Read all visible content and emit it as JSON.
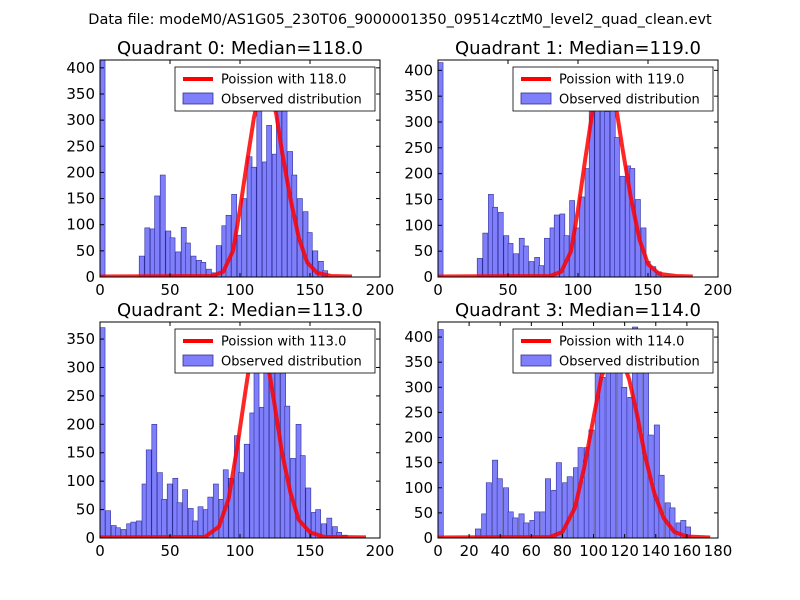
{
  "suptitle": "Data file: modeM0/AS1G05_230T06_9000001350_09514cztM0_level2_quad_clean.evt",
  "legend_observed": "Observed distribution",
  "colors": {
    "bars": "#7f7ffb",
    "bar_edge": "#2f2f9a",
    "poisson": "#ff0000",
    "axes": "#000000"
  },
  "chart_data": [
    {
      "type": "bar+line",
      "title": "Quadrant 0: Median=118.0",
      "median": 118.0,
      "legend_poisson": "Poission with 118.0",
      "xlim": [
        0,
        200
      ],
      "ylim": [
        0,
        415
      ],
      "xticks": [
        0,
        50,
        100,
        150,
        200
      ],
      "yticks": [
        0,
        50,
        100,
        150,
        200,
        250,
        300,
        350,
        400
      ],
      "bar_width": 3.6,
      "bars": [
        [
          0,
          415
        ],
        [
          28,
          40
        ],
        [
          32,
          94
        ],
        [
          36,
          92
        ],
        [
          39,
          155
        ],
        [
          43,
          195
        ],
        [
          47,
          88
        ],
        [
          50,
          75
        ],
        [
          54,
          48
        ],
        [
          58,
          95
        ],
        [
          61,
          65
        ],
        [
          65,
          40
        ],
        [
          69,
          32
        ],
        [
          72,
          28
        ],
        [
          76,
          15
        ],
        [
          80,
          8
        ],
        [
          83,
          60
        ],
        [
          87,
          98
        ],
        [
          90,
          118
        ],
        [
          94,
          158
        ],
        [
          98,
          80
        ],
        [
          101,
          150
        ],
        [
          105,
          230
        ],
        [
          108,
          210
        ],
        [
          112,
          320
        ],
        [
          116,
          220
        ],
        [
          119,
          290
        ],
        [
          123,
          235
        ],
        [
          126,
          385
        ],
        [
          130,
          340
        ],
        [
          134,
          240
        ],
        [
          137,
          195
        ],
        [
          141,
          150
        ],
        [
          145,
          125
        ],
        [
          148,
          85
        ],
        [
          152,
          50
        ],
        [
          156,
          30
        ],
        [
          159,
          12
        ]
      ],
      "poisson": [
        [
          0,
          1
        ],
        [
          80,
          2
        ],
        [
          88,
          10
        ],
        [
          95,
          50
        ],
        [
          100,
          130
        ],
        [
          105,
          220
        ],
        [
          110,
          305
        ],
        [
          114,
          355
        ],
        [
          118,
          368
        ],
        [
          122,
          355
        ],
        [
          126,
          310
        ],
        [
          130,
          240
        ],
        [
          136,
          150
        ],
        [
          142,
          75
        ],
        [
          148,
          28
        ],
        [
          155,
          8
        ],
        [
          165,
          2
        ],
        [
          180,
          1
        ]
      ]
    },
    {
      "type": "bar+line",
      "title": "Quadrant 1: Median=119.0",
      "median": 119.0,
      "legend_poisson": "Poission with 119.0",
      "xlim": [
        0,
        200
      ],
      "ylim": [
        0,
        420
      ],
      "xticks": [
        0,
        50,
        100,
        150,
        200
      ],
      "yticks": [
        0,
        50,
        100,
        150,
        200,
        250,
        300,
        350,
        400
      ],
      "bar_width": 3.6,
      "bars": [
        [
          0,
          415
        ],
        [
          28,
          36
        ],
        [
          32,
          85
        ],
        [
          36,
          160
        ],
        [
          39,
          135
        ],
        [
          43,
          125
        ],
        [
          47,
          80
        ],
        [
          50,
          65
        ],
        [
          54,
          45
        ],
        [
          58,
          75
        ],
        [
          61,
          60
        ],
        [
          65,
          30
        ],
        [
          69,
          38
        ],
        [
          72,
          22
        ],
        [
          76,
          75
        ],
        [
          80,
          95
        ],
        [
          83,
          120
        ],
        [
          87,
          122
        ],
        [
          90,
          80
        ],
        [
          94,
          148
        ],
        [
          98,
          95
        ],
        [
          101,
          155
        ],
        [
          105,
          210
        ],
        [
          108,
          340
        ],
        [
          112,
          390
        ],
        [
          116,
          400
        ],
        [
          119,
          320
        ],
        [
          123,
          390
        ],
        [
          126,
          270
        ],
        [
          130,
          195
        ],
        [
          134,
          215
        ],
        [
          137,
          210
        ],
        [
          141,
          150
        ],
        [
          145,
          95
        ],
        [
          148,
          30
        ],
        [
          152,
          20
        ],
        [
          156,
          10
        ]
      ],
      "poisson": [
        [
          0,
          1
        ],
        [
          80,
          2
        ],
        [
          88,
          10
        ],
        [
          95,
          50
        ],
        [
          100,
          130
        ],
        [
          105,
          225
        ],
        [
          110,
          315
        ],
        [
          114,
          370
        ],
        [
          119,
          390
        ],
        [
          124,
          370
        ],
        [
          128,
          315
        ],
        [
          132,
          245
        ],
        [
          138,
          150
        ],
        [
          144,
          72
        ],
        [
          150,
          25
        ],
        [
          158,
          6
        ],
        [
          170,
          2
        ],
        [
          182,
          1
        ]
      ]
    },
    {
      "type": "bar+line",
      "title": "Quadrant 2: Median=113.0",
      "median": 113.0,
      "legend_poisson": "Poission with 113.0",
      "xlim": [
        0,
        200
      ],
      "ylim": [
        0,
        380
      ],
      "xticks": [
        0,
        50,
        100,
        150,
        200
      ],
      "yticks": [
        0,
        50,
        100,
        150,
        200,
        250,
        300,
        350
      ],
      "bar_width": 3.6,
      "bars": [
        [
          0,
          370
        ],
        [
          4,
          48
        ],
        [
          8,
          22
        ],
        [
          11,
          18
        ],
        [
          15,
          15
        ],
        [
          19,
          25
        ],
        [
          22,
          28
        ],
        [
          26,
          30
        ],
        [
          30,
          95
        ],
        [
          33,
          155
        ],
        [
          37,
          200
        ],
        [
          41,
          115
        ],
        [
          44,
          68
        ],
        [
          48,
          95
        ],
        [
          52,
          105
        ],
        [
          55,
          62
        ],
        [
          59,
          85
        ],
        [
          63,
          52
        ],
        [
          66,
          30
        ],
        [
          70,
          55
        ],
        [
          74,
          50
        ],
        [
          77,
          72
        ],
        [
          81,
          95
        ],
        [
          85,
          68
        ],
        [
          88,
          120
        ],
        [
          92,
          105
        ],
        [
          96,
          180
        ],
        [
          99,
          115
        ],
        [
          103,
          165
        ],
        [
          107,
          220
        ],
        [
          110,
          340
        ],
        [
          114,
          230
        ],
        [
          117,
          310
        ],
        [
          121,
          290
        ],
        [
          125,
          355
        ],
        [
          129,
          355
        ],
        [
          132,
          232
        ],
        [
          136,
          140
        ],
        [
          140,
          200
        ],
        [
          143,
          145
        ],
        [
          147,
          88
        ],
        [
          151,
          45
        ],
        [
          154,
          50
        ],
        [
          158,
          25
        ],
        [
          162,
          35
        ],
        [
          166,
          20
        ],
        [
          169,
          10
        ],
        [
          173,
          5
        ]
      ],
      "poisson": [
        [
          0,
          1
        ],
        [
          75,
          2
        ],
        [
          85,
          20
        ],
        [
          92,
          70
        ],
        [
          98,
          160
        ],
        [
          104,
          260
        ],
        [
          108,
          325
        ],
        [
          112,
          350
        ],
        [
          116,
          345
        ],
        [
          120,
          305
        ],
        [
          125,
          230
        ],
        [
          130,
          150
        ],
        [
          136,
          80
        ],
        [
          142,
          32
        ],
        [
          150,
          10
        ],
        [
          160,
          2
        ],
        [
          190,
          1
        ]
      ]
    },
    {
      "type": "bar+line",
      "title": "Quadrant 3: Median=114.0",
      "median": 114.0,
      "legend_poisson": "Poission with 114.0",
      "xlim": [
        0,
        180
      ],
      "ylim": [
        0,
        430
      ],
      "xticks": [
        0,
        20,
        40,
        60,
        80,
        100,
        120,
        140,
        160,
        180
      ],
      "yticks": [
        0,
        50,
        100,
        150,
        200,
        250,
        300,
        350,
        400
      ],
      "bar_width": 3.4,
      "bars": [
        [
          0,
          415
        ],
        [
          24,
          18
        ],
        [
          28,
          48
        ],
        [
          31,
          110
        ],
        [
          35,
          155
        ],
        [
          38,
          118
        ],
        [
          42,
          100
        ],
        [
          45,
          52
        ],
        [
          48,
          40
        ],
        [
          52,
          48
        ],
        [
          55,
          30
        ],
        [
          59,
          35
        ],
        [
          62,
          52
        ],
        [
          66,
          52
        ],
        [
          69,
          118
        ],
        [
          73,
          95
        ],
        [
          76,
          150
        ],
        [
          80,
          110
        ],
        [
          83,
          122
        ],
        [
          87,
          140
        ],
        [
          90,
          180
        ],
        [
          94,
          180
        ],
        [
          97,
          215
        ],
        [
          101,
          345
        ],
        [
          104,
          320
        ],
        [
          108,
          340
        ],
        [
          111,
          395
        ],
        [
          115,
          345
        ],
        [
          118,
          300
        ],
        [
          122,
          280
        ],
        [
          125,
          420
        ],
        [
          128,
          335
        ],
        [
          132,
          360
        ],
        [
          135,
          205
        ],
        [
          139,
          225
        ],
        [
          142,
          125
        ],
        [
          146,
          70
        ],
        [
          149,
          60
        ],
        [
          153,
          30
        ],
        [
          156,
          35
        ],
        [
          159,
          22
        ]
      ],
      "poisson": [
        [
          0,
          1
        ],
        [
          72,
          2
        ],
        [
          80,
          12
        ],
        [
          88,
          60
        ],
        [
          94,
          140
        ],
        [
          100,
          240
        ],
        [
          105,
          320
        ],
        [
          110,
          360
        ],
        [
          114,
          370
        ],
        [
          118,
          360
        ],
        [
          123,
          315
        ],
        [
          128,
          245
        ],
        [
          133,
          165
        ],
        [
          139,
          90
        ],
        [
          145,
          40
        ],
        [
          152,
          12
        ],
        [
          160,
          3
        ],
        [
          175,
          1
        ]
      ]
    }
  ]
}
